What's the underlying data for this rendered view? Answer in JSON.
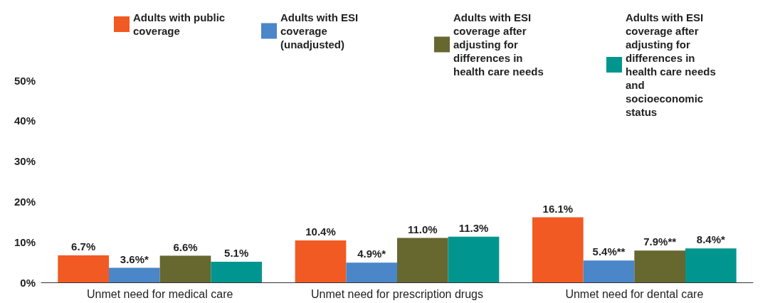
{
  "chart_data": {
    "type": "bar",
    "categories": [
      "Unmet need for medical care",
      "Unmet need for prescription drugs",
      "Unmet need for dental care"
    ],
    "series": [
      {
        "name": "Adults with public coverage",
        "color": "#f15a22",
        "values": [
          6.7,
          10.4,
          16.1
        ],
        "value_labels": [
          "6.7%",
          "10.4%",
          "16.1%"
        ]
      },
      {
        "name": "Adults with ESI coverage (unadjusted)",
        "color": "#4a86c8",
        "values": [
          3.6,
          4.9,
          5.4
        ],
        "value_labels": [
          "3.6%*",
          "4.9%*",
          "5.4%**"
        ]
      },
      {
        "name": "Adults with ESI coverage after adjusting for differences in health care needs",
        "color": "#676730",
        "values": [
          6.6,
          11.0,
          7.9
        ],
        "value_labels": [
          "6.6%",
          "11.0%",
          "7.9%**"
        ]
      },
      {
        "name": "Adults with ESI coverage after adjusting for differences in health care needs and socioeconomic status",
        "color": "#00968f",
        "values": [
          5.1,
          11.3,
          8.4
        ],
        "value_labels": [
          "5.1%",
          "11.3%",
          "8.4%*"
        ]
      }
    ],
    "ylim": [
      0,
      50
    ],
    "yticks": [
      {
        "value": 0,
        "label": "0%"
      },
      {
        "value": 10,
        "label": "10%"
      },
      {
        "value": 20,
        "label": "20%"
      },
      {
        "value": 30,
        "label": "30%"
      },
      {
        "value": 40,
        "label": "40%"
      },
      {
        "value": 50,
        "label": "50%"
      }
    ],
    "grid": false,
    "legend": "top"
  }
}
